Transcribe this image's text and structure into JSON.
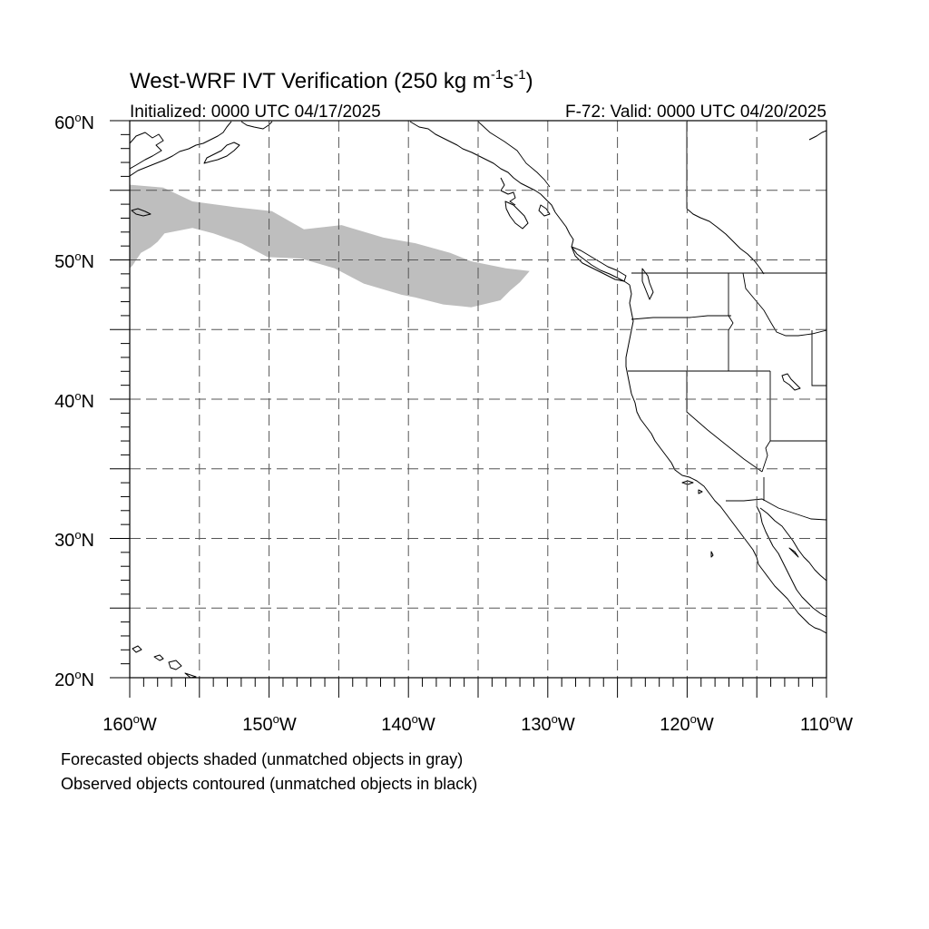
{
  "title": {
    "main": "West-WRF IVT Verification (250 kg m",
    "exp1": "-1",
    "mid": "s",
    "exp2": "-1",
    "close": ")"
  },
  "subtitle_left": "Initialized: 0000 UTC 04/17/2025",
  "subtitle_right": "F-72: Valid: 0000 UTC 04/20/2025",
  "lat_labels": [
    {
      "deg": "60",
      "hem": "N"
    },
    {
      "deg": "50",
      "hem": "N"
    },
    {
      "deg": "40",
      "hem": "N"
    },
    {
      "deg": "30",
      "hem": "N"
    },
    {
      "deg": "20",
      "hem": "N"
    }
  ],
  "lon_labels": [
    {
      "deg": "160",
      "hem": "W"
    },
    {
      "deg": "150",
      "hem": "W"
    },
    {
      "deg": "140",
      "hem": "W"
    },
    {
      "deg": "130",
      "hem": "W"
    },
    {
      "deg": "120",
      "hem": "W"
    },
    {
      "deg": "110",
      "hem": "W"
    }
  ],
  "footnote_1": "Forecasted objects shaded (unmatched objects in gray)",
  "footnote_2": "Observed objects contoured (unmatched objects in black)",
  "colors": {
    "forecast_unmatched": "#bebebe",
    "observed_unmatched": "#000000",
    "grid": "#555555"
  },
  "chart_data": {
    "type": "map",
    "projection": "cylindrical equidistant",
    "lon_range": [
      -160,
      -110
    ],
    "lat_range": [
      20,
      60
    ],
    "grid_lines_lon": [
      -155,
      -150,
      -145,
      -140,
      -135,
      -130,
      -125,
      -120,
      -115
    ],
    "grid_lines_lat": [
      25,
      30,
      35,
      40,
      45,
      50,
      55
    ],
    "forecast_objects": [
      {
        "status": "unmatched",
        "approx_outline_lonlat": [
          [
            -160,
            55.4
          ],
          [
            -157.6,
            55.2
          ],
          [
            -155.5,
            54.2
          ],
          [
            -152.5,
            53.8
          ],
          [
            -149.8,
            53.5
          ],
          [
            -147.5,
            52.2
          ],
          [
            -144.8,
            52.5
          ],
          [
            -141.8,
            51.6
          ],
          [
            -139.5,
            51.2
          ],
          [
            -137,
            50.5
          ],
          [
            -135.5,
            49.9
          ],
          [
            -133,
            49.4
          ],
          [
            -131.3,
            49.2
          ],
          [
            -132,
            48.4
          ],
          [
            -132.7,
            47.8
          ],
          [
            -133.4,
            47.1
          ],
          [
            -135.5,
            46.6
          ],
          [
            -137.5,
            46.8
          ],
          [
            -139.5,
            47.3
          ],
          [
            -140.5,
            47.5
          ],
          [
            -143.2,
            48.3
          ],
          [
            -145.3,
            49.4
          ],
          [
            -147.7,
            50.1
          ],
          [
            -150.1,
            50.2
          ],
          [
            -152,
            51.2
          ],
          [
            -154,
            51.9
          ],
          [
            -155.5,
            52.3
          ],
          [
            -157.5,
            51.9
          ],
          [
            -158,
            51.3
          ],
          [
            -158.5,
            50.9
          ],
          [
            -159.2,
            50.5
          ],
          [
            -159.8,
            49.6
          ],
          [
            -160,
            49.4
          ]
        ]
      }
    ],
    "observed_objects": []
  }
}
